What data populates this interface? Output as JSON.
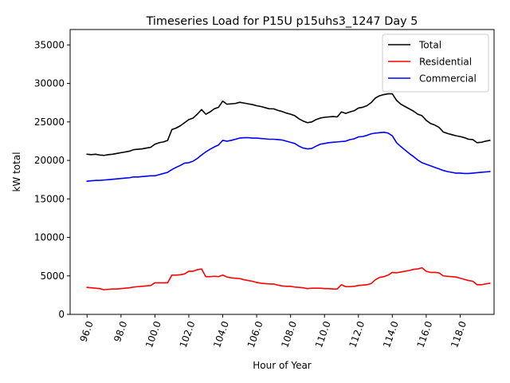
{
  "chart_data": {
    "type": "line",
    "title": "Timeseries Load for P15U p15uhs3_1247  Day 5",
    "xlabel": "Hour of Year",
    "ylabel": "kW total",
    "xlim": [
      95.0,
      120.0
    ],
    "ylim": [
      0,
      37000
    ],
    "xticks": [
      96,
      98,
      100,
      102,
      104,
      106,
      108,
      110,
      112,
      114,
      116,
      118
    ],
    "xtick_labels": [
      "96.0",
      "98.0",
      "100.0",
      "102.0",
      "104.0",
      "106.0",
      "108.0",
      "110.0",
      "112.0",
      "114.0",
      "116.0",
      "118.0"
    ],
    "yticks": [
      0,
      5000,
      10000,
      15000,
      20000,
      25000,
      30000,
      35000
    ],
    "ytick_labels": [
      "0",
      "5000",
      "10000",
      "15000",
      "20000",
      "25000",
      "30000",
      "35000"
    ],
    "legend_position": "top-right",
    "series": [
      {
        "name": "Total",
        "color": "#000000",
        "points": [
          [
            96.0,
            20800
          ],
          [
            96.25,
            20750
          ],
          [
            96.5,
            20800
          ],
          [
            96.75,
            20700
          ],
          [
            97.0,
            20650
          ],
          [
            97.25,
            20750
          ],
          [
            97.5,
            20800
          ],
          [
            97.75,
            20900
          ],
          [
            98.0,
            21000
          ],
          [
            98.25,
            21100
          ],
          [
            98.5,
            21200
          ],
          [
            98.75,
            21400
          ],
          [
            99.0,
            21450
          ],
          [
            99.25,
            21500
          ],
          [
            99.5,
            21600
          ],
          [
            99.75,
            21700
          ],
          [
            100.0,
            22100
          ],
          [
            100.25,
            22300
          ],
          [
            100.5,
            22400
          ],
          [
            100.75,
            22600
          ],
          [
            101.0,
            24000
          ],
          [
            101.25,
            24200
          ],
          [
            101.5,
            24500
          ],
          [
            101.75,
            24900
          ],
          [
            102.0,
            25300
          ],
          [
            102.25,
            25500
          ],
          [
            102.5,
            26000
          ],
          [
            102.75,
            26600
          ],
          [
            103.0,
            26000
          ],
          [
            103.25,
            26300
          ],
          [
            103.5,
            26700
          ],
          [
            103.75,
            26900
          ],
          [
            104.0,
            27700
          ],
          [
            104.25,
            27300
          ],
          [
            104.5,
            27350
          ],
          [
            104.75,
            27400
          ],
          [
            105.0,
            27550
          ],
          [
            105.25,
            27450
          ],
          [
            105.5,
            27350
          ],
          [
            105.75,
            27250
          ],
          [
            106.0,
            27100
          ],
          [
            106.25,
            27000
          ],
          [
            106.5,
            26850
          ],
          [
            106.75,
            26700
          ],
          [
            107.0,
            26700
          ],
          [
            107.25,
            26500
          ],
          [
            107.5,
            26350
          ],
          [
            107.75,
            26150
          ],
          [
            108.0,
            26000
          ],
          [
            108.25,
            25800
          ],
          [
            108.5,
            25400
          ],
          [
            108.75,
            25100
          ],
          [
            109.0,
            24900
          ],
          [
            109.25,
            25000
          ],
          [
            109.5,
            25300
          ],
          [
            109.75,
            25500
          ],
          [
            110.0,
            25600
          ],
          [
            110.25,
            25650
          ],
          [
            110.5,
            25700
          ],
          [
            110.75,
            25650
          ],
          [
            111.0,
            26300
          ],
          [
            111.25,
            26100
          ],
          [
            111.5,
            26300
          ],
          [
            111.75,
            26450
          ],
          [
            112.0,
            26800
          ],
          [
            112.25,
            26900
          ],
          [
            112.5,
            27100
          ],
          [
            112.75,
            27500
          ],
          [
            113.0,
            28100
          ],
          [
            113.25,
            28400
          ],
          [
            113.5,
            28550
          ],
          [
            113.75,
            28650
          ],
          [
            114.0,
            28650
          ],
          [
            114.25,
            27800
          ],
          [
            114.5,
            27300
          ],
          [
            114.75,
            27000
          ],
          [
            115.0,
            26700
          ],
          [
            115.25,
            26400
          ],
          [
            115.5,
            26000
          ],
          [
            115.75,
            25800
          ],
          [
            116.0,
            25200
          ],
          [
            116.25,
            24800
          ],
          [
            116.5,
            24600
          ],
          [
            116.75,
            24300
          ],
          [
            117.0,
            23700
          ],
          [
            117.25,
            23500
          ],
          [
            117.5,
            23350
          ],
          [
            117.75,
            23200
          ],
          [
            118.0,
            23100
          ],
          [
            118.25,
            22950
          ],
          [
            118.5,
            22750
          ],
          [
            118.75,
            22700
          ],
          [
            119.0,
            22300
          ],
          [
            119.25,
            22350
          ],
          [
            119.5,
            22500
          ],
          [
            119.75,
            22600
          ]
        ]
      },
      {
        "name": "Residential",
        "color": "#ff0000",
        "points": [
          [
            96.0,
            3500
          ],
          [
            96.25,
            3450
          ],
          [
            96.5,
            3400
          ],
          [
            96.75,
            3350
          ],
          [
            97.0,
            3200
          ],
          [
            97.25,
            3250
          ],
          [
            97.5,
            3300
          ],
          [
            97.75,
            3300
          ],
          [
            98.0,
            3350
          ],
          [
            98.25,
            3400
          ],
          [
            98.5,
            3450
          ],
          [
            98.75,
            3550
          ],
          [
            99.0,
            3600
          ],
          [
            99.25,
            3650
          ],
          [
            99.5,
            3700
          ],
          [
            99.75,
            3750
          ],
          [
            100.0,
            4100
          ],
          [
            100.25,
            4100
          ],
          [
            100.5,
            4100
          ],
          [
            100.75,
            4100
          ],
          [
            101.0,
            5100
          ],
          [
            101.25,
            5100
          ],
          [
            101.5,
            5150
          ],
          [
            101.75,
            5250
          ],
          [
            102.0,
            5600
          ],
          [
            102.25,
            5600
          ],
          [
            102.5,
            5800
          ],
          [
            102.75,
            5900
          ],
          [
            103.0,
            4900
          ],
          [
            103.25,
            4900
          ],
          [
            103.5,
            4950
          ],
          [
            103.75,
            4900
          ],
          [
            104.0,
            5100
          ],
          [
            104.25,
            4850
          ],
          [
            104.5,
            4750
          ],
          [
            104.75,
            4700
          ],
          [
            105.0,
            4650
          ],
          [
            105.25,
            4500
          ],
          [
            105.5,
            4400
          ],
          [
            105.75,
            4300
          ],
          [
            106.0,
            4150
          ],
          [
            106.25,
            4050
          ],
          [
            106.5,
            4000
          ],
          [
            106.75,
            3950
          ],
          [
            107.0,
            3950
          ],
          [
            107.25,
            3800
          ],
          [
            107.5,
            3700
          ],
          [
            107.75,
            3650
          ],
          [
            108.0,
            3650
          ],
          [
            108.25,
            3550
          ],
          [
            108.5,
            3500
          ],
          [
            108.75,
            3450
          ],
          [
            109.0,
            3350
          ],
          [
            109.25,
            3400
          ],
          [
            109.5,
            3400
          ],
          [
            109.75,
            3400
          ],
          [
            110.0,
            3350
          ],
          [
            110.25,
            3350
          ],
          [
            110.5,
            3300
          ],
          [
            110.75,
            3300
          ],
          [
            111.0,
            3850
          ],
          [
            111.25,
            3600
          ],
          [
            111.5,
            3600
          ],
          [
            111.75,
            3650
          ],
          [
            112.0,
            3750
          ],
          [
            112.25,
            3800
          ],
          [
            112.5,
            3850
          ],
          [
            112.75,
            4000
          ],
          [
            113.0,
            4500
          ],
          [
            113.25,
            4800
          ],
          [
            113.5,
            4900
          ],
          [
            113.75,
            5100
          ],
          [
            114.0,
            5450
          ],
          [
            114.25,
            5400
          ],
          [
            114.5,
            5500
          ],
          [
            114.75,
            5600
          ],
          [
            115.0,
            5700
          ],
          [
            115.25,
            5850
          ],
          [
            115.5,
            5900
          ],
          [
            115.75,
            6050
          ],
          [
            116.0,
            5600
          ],
          [
            116.25,
            5450
          ],
          [
            116.5,
            5450
          ],
          [
            116.75,
            5400
          ],
          [
            117.0,
            5000
          ],
          [
            117.25,
            4950
          ],
          [
            117.5,
            4900
          ],
          [
            117.75,
            4850
          ],
          [
            118.0,
            4700
          ],
          [
            118.25,
            4550
          ],
          [
            118.5,
            4400
          ],
          [
            118.75,
            4300
          ],
          [
            119.0,
            3850
          ],
          [
            119.25,
            3850
          ],
          [
            119.5,
            3950
          ],
          [
            119.75,
            4050
          ]
        ]
      },
      {
        "name": "Commercial",
        "color": "#0000ff",
        "points": [
          [
            96.0,
            17300
          ],
          [
            96.25,
            17350
          ],
          [
            96.5,
            17400
          ],
          [
            96.75,
            17400
          ],
          [
            97.0,
            17450
          ],
          [
            97.25,
            17500
          ],
          [
            97.5,
            17550
          ],
          [
            97.75,
            17600
          ],
          [
            98.0,
            17650
          ],
          [
            98.25,
            17700
          ],
          [
            98.5,
            17750
          ],
          [
            98.75,
            17850
          ],
          [
            99.0,
            17850
          ],
          [
            99.25,
            17900
          ],
          [
            99.5,
            17950
          ],
          [
            99.75,
            18000
          ],
          [
            100.0,
            18000
          ],
          [
            100.25,
            18150
          ],
          [
            100.5,
            18300
          ],
          [
            100.75,
            18450
          ],
          [
            101.0,
            18800
          ],
          [
            101.25,
            19100
          ],
          [
            101.5,
            19350
          ],
          [
            101.75,
            19650
          ],
          [
            102.0,
            19700
          ],
          [
            102.25,
            19900
          ],
          [
            102.5,
            20250
          ],
          [
            102.75,
            20700
          ],
          [
            103.0,
            21100
          ],
          [
            103.25,
            21450
          ],
          [
            103.5,
            21750
          ],
          [
            103.75,
            22000
          ],
          [
            104.0,
            22600
          ],
          [
            104.25,
            22500
          ],
          [
            104.5,
            22600
          ],
          [
            104.75,
            22750
          ],
          [
            105.0,
            22900
          ],
          [
            105.25,
            22950
          ],
          [
            105.5,
            22950
          ],
          [
            105.75,
            22900
          ],
          [
            106.0,
            22900
          ],
          [
            106.25,
            22850
          ],
          [
            106.5,
            22800
          ],
          [
            106.75,
            22750
          ],
          [
            107.0,
            22750
          ],
          [
            107.25,
            22700
          ],
          [
            107.5,
            22650
          ],
          [
            107.75,
            22500
          ],
          [
            108.0,
            22350
          ],
          [
            108.25,
            22200
          ],
          [
            108.5,
            21850
          ],
          [
            108.75,
            21600
          ],
          [
            109.0,
            21500
          ],
          [
            109.25,
            21550
          ],
          [
            109.5,
            21850
          ],
          [
            109.75,
            22100
          ],
          [
            110.0,
            22200
          ],
          [
            110.25,
            22300
          ],
          [
            110.5,
            22350
          ],
          [
            110.75,
            22400
          ],
          [
            111.0,
            22450
          ],
          [
            111.25,
            22500
          ],
          [
            111.5,
            22700
          ],
          [
            111.75,
            22800
          ],
          [
            112.0,
            23050
          ],
          [
            112.25,
            23100
          ],
          [
            112.5,
            23250
          ],
          [
            112.75,
            23450
          ],
          [
            113.0,
            23550
          ],
          [
            113.25,
            23600
          ],
          [
            113.5,
            23650
          ],
          [
            113.75,
            23550
          ],
          [
            114.0,
            23200
          ],
          [
            114.25,
            22300
          ],
          [
            114.5,
            21800
          ],
          [
            114.75,
            21350
          ],
          [
            115.0,
            20900
          ],
          [
            115.25,
            20500
          ],
          [
            115.5,
            20050
          ],
          [
            115.75,
            19700
          ],
          [
            116.0,
            19500
          ],
          [
            116.25,
            19300
          ],
          [
            116.5,
            19100
          ],
          [
            116.75,
            18900
          ],
          [
            117.0,
            18700
          ],
          [
            117.25,
            18550
          ],
          [
            117.5,
            18450
          ],
          [
            117.75,
            18350
          ],
          [
            118.0,
            18350
          ],
          [
            118.25,
            18300
          ],
          [
            118.5,
            18300
          ],
          [
            118.75,
            18350
          ],
          [
            119.0,
            18400
          ],
          [
            119.25,
            18450
          ],
          [
            119.5,
            18500
          ],
          [
            119.75,
            18550
          ]
        ]
      }
    ]
  }
}
